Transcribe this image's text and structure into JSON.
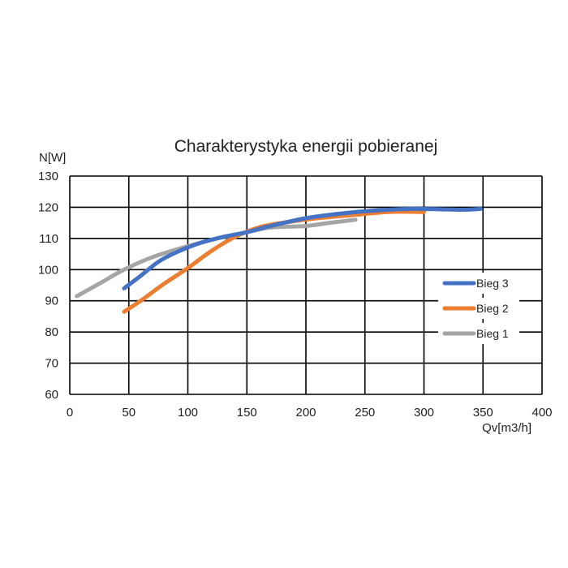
{
  "chart_data": {
    "type": "line",
    "title": "Charakterystyka energii pobieranej",
    "ylabel": "N[W]",
    "xlabel": "Qv[m3/h]",
    "xlim": [
      0,
      400
    ],
    "ylim": [
      60,
      130
    ],
    "x_ticks": [
      0,
      50,
      100,
      150,
      200,
      250,
      300,
      350,
      400
    ],
    "y_ticks": [
      60,
      70,
      80,
      90,
      100,
      110,
      120,
      130
    ],
    "grid": true,
    "legend_position": "right",
    "series": [
      {
        "name": "Bieg 3",
        "color": "#4472C4",
        "points": [
          [
            46,
            94
          ],
          [
            60,
            98
          ],
          [
            75,
            102.5
          ],
          [
            90,
            105.5
          ],
          [
            110,
            108.5
          ],
          [
            130,
            110.5
          ],
          [
            150,
            112
          ],
          [
            170,
            114
          ],
          [
            200,
            116.5
          ],
          [
            230,
            118
          ],
          [
            260,
            119
          ],
          [
            290,
            119.5
          ],
          [
            320,
            119.3
          ],
          [
            335,
            119.2
          ],
          [
            348,
            119.5
          ]
        ]
      },
      {
        "name": "Bieg 2",
        "color": "#ED7D31",
        "points": [
          [
            46,
            86.5
          ],
          [
            60,
            90
          ],
          [
            80,
            95.5
          ],
          [
            100,
            100.5
          ],
          [
            120,
            106
          ],
          [
            140,
            110.5
          ],
          [
            160,
            113.5
          ],
          [
            180,
            115
          ],
          [
            210,
            116.5
          ],
          [
            240,
            117.5
          ],
          [
            270,
            118.5
          ],
          [
            300,
            118.5
          ]
        ]
      },
      {
        "name": "Bieg 1",
        "color": "#A5A5A5",
        "points": [
          [
            6,
            91.5
          ],
          [
            25,
            95.5
          ],
          [
            46,
            100
          ],
          [
            70,
            104
          ],
          [
            100,
            107.5
          ],
          [
            125,
            110
          ],
          [
            150,
            112
          ],
          [
            170,
            113.5
          ],
          [
            200,
            114
          ],
          [
            220,
            115
          ],
          [
            242,
            116
          ]
        ]
      }
    ]
  }
}
